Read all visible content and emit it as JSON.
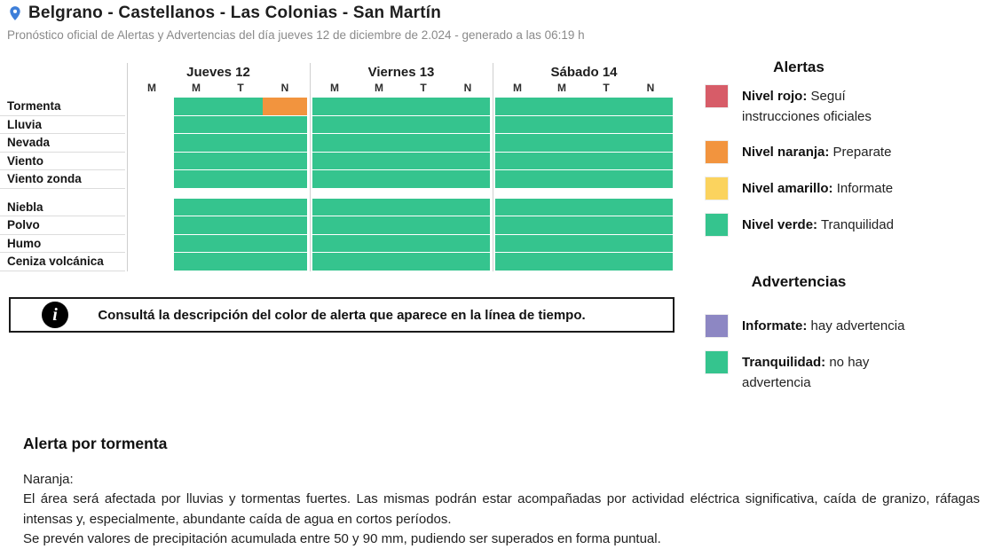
{
  "header": {
    "title": "Belgrano - Castellanos - Las Colonias - San Martín",
    "subtitle": "Pronóstico oficial de Alertas y Advertencias del día jueves 12 de diciembre de 2.024 - generado a las 06:19 h"
  },
  "colors": {
    "green": "#35c48e",
    "orange": "#f2943e",
    "red": "#d75c68",
    "yellow": "#fbd35e",
    "purple": "#8d87c3",
    "pin_blue": "#3e7fd9",
    "grid_line": "#cfcfcf"
  },
  "chart_data": {
    "type": "heatmap",
    "title": "Línea de tiempo de alertas y advertencias",
    "legend_position": "right",
    "days": [
      {
        "label": "Jueves 12",
        "periods": [
          "M",
          "M",
          "T",
          "N"
        ]
      },
      {
        "label": "Viernes 13",
        "periods": [
          "M",
          "M",
          "T",
          "N"
        ]
      },
      {
        "label": "Sábado 14",
        "periods": [
          "M",
          "M",
          "T",
          "N"
        ]
      }
    ],
    "value_colors": {
      "none": "#ffffff",
      "green": "#35c48e",
      "orange": "#f2943e"
    },
    "groups": [
      {
        "name": "alertas",
        "rows": [
          {
            "label": "Tormenta",
            "cells": [
              "none",
              "green",
              "green",
              "orange",
              "green",
              "green",
              "green",
              "green",
              "green",
              "green",
              "green",
              "green"
            ]
          },
          {
            "label": "Lluvia",
            "cells": [
              "none",
              "green",
              "green",
              "green",
              "green",
              "green",
              "green",
              "green",
              "green",
              "green",
              "green",
              "green"
            ]
          },
          {
            "label": "Nevada",
            "cells": [
              "none",
              "green",
              "green",
              "green",
              "green",
              "green",
              "green",
              "green",
              "green",
              "green",
              "green",
              "green"
            ]
          },
          {
            "label": "Viento",
            "cells": [
              "none",
              "green",
              "green",
              "green",
              "green",
              "green",
              "green",
              "green",
              "green",
              "green",
              "green",
              "green"
            ]
          },
          {
            "label": "Viento zonda",
            "cells": [
              "none",
              "green",
              "green",
              "green",
              "green",
              "green",
              "green",
              "green",
              "green",
              "green",
              "green",
              "green"
            ]
          }
        ]
      },
      {
        "name": "advertencias",
        "rows": [
          {
            "label": "Niebla",
            "cells": [
              "none",
              "green",
              "green",
              "green",
              "green",
              "green",
              "green",
              "green",
              "green",
              "green",
              "green",
              "green"
            ]
          },
          {
            "label": "Polvo",
            "cells": [
              "none",
              "green",
              "green",
              "green",
              "green",
              "green",
              "green",
              "green",
              "green",
              "green",
              "green",
              "green"
            ]
          },
          {
            "label": "Humo",
            "cells": [
              "none",
              "green",
              "green",
              "green",
              "green",
              "green",
              "green",
              "green",
              "green",
              "green",
              "green",
              "green"
            ]
          },
          {
            "label": "Ceniza volcánica",
            "cells": [
              "none",
              "green",
              "green",
              "green",
              "green",
              "green",
              "green",
              "green",
              "green",
              "green",
              "green",
              "green"
            ]
          }
        ]
      }
    ]
  },
  "legend": {
    "alertas": {
      "title": "Alertas",
      "items": [
        {
          "color": "#d75c68",
          "label": "Nivel rojo:",
          "text": " Seguí instrucciones oficiales"
        },
        {
          "color": "#f2943e",
          "label": "Nivel naranja:",
          "text": " Preparate"
        },
        {
          "color": "#fbd35e",
          "label": "Nivel amarillo:",
          "text": " Informate"
        },
        {
          "color": "#35c48e",
          "label": "Nivel verde:",
          "text": " Tranquilidad"
        }
      ]
    },
    "advertencias": {
      "title": "Advertencias",
      "items": [
        {
          "color": "#8d87c3",
          "label": "Informate:",
          "text": " hay advertencia"
        },
        {
          "color": "#35c48e",
          "label": "Tranquilidad:",
          "text": " no hay advertencia"
        }
      ]
    }
  },
  "info_box": {
    "icon": "info-icon",
    "text": "Consultá la descripción del color de alerta que aparece en la línea de tiempo."
  },
  "detail": {
    "title": "Alerta por tormenta",
    "lines": [
      "Naranja:",
      "El área será afectada por lluvias y tormentas fuertes. Las mismas podrán estar acompañadas por actividad eléctrica significativa, caída de granizo, ráfagas intensas y, especialmente, abundante caída de agua en cortos períodos.",
      "Se prevén valores de precipitación acumulada entre 50 y 90 mm, pudiendo ser superados en forma puntual."
    ]
  }
}
